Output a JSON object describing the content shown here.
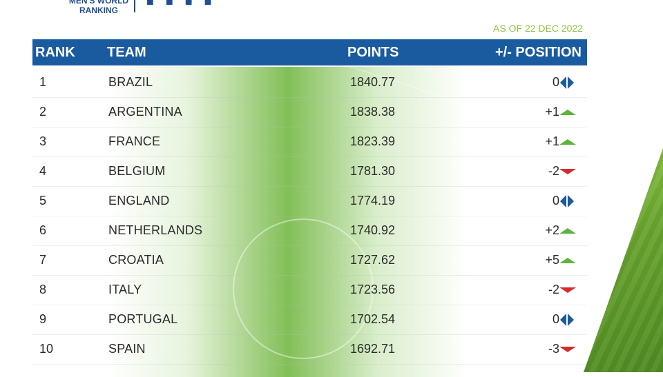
{
  "logo": {
    "line1": "MEN'S WORLD",
    "line2": "RANKING",
    "marks": "■ ■ ■ ■"
  },
  "as_of": "AS OF 22 DEC 2022",
  "header": {
    "rank": "RANK",
    "team": "TEAM",
    "points": "POINTS",
    "change": "+/- POSITION"
  },
  "colors": {
    "header_bg": "#1a5ba0",
    "up": "#5fb33a",
    "down": "#d62b2b",
    "same": "#1a5ba0",
    "accent_green": "#8cc63f"
  },
  "rows": [
    {
      "rank": "1",
      "team": "BRAZIL",
      "points": "1840.77",
      "change": "0",
      "trend": "same-icon"
    },
    {
      "rank": "2",
      "team": "ARGENTINA",
      "points": "1838.38",
      "change": "+1",
      "trend": "up-icon"
    },
    {
      "rank": "3",
      "team": "FRANCE",
      "points": "1823.39",
      "change": "+1",
      "trend": "up-icon"
    },
    {
      "rank": "4",
      "team": "BELGIUM",
      "points": "1781.30",
      "change": "-2",
      "trend": "down-icon"
    },
    {
      "rank": "5",
      "team": "ENGLAND",
      "points": "1774.19",
      "change": "0",
      "trend": "same-icon"
    },
    {
      "rank": "6",
      "team": "NETHERLANDS",
      "points": "1740.92",
      "change": "+2",
      "trend": "up-icon"
    },
    {
      "rank": "7",
      "team": "CROATIA",
      "points": "1727.62",
      "change": "+5",
      "trend": "up-icon"
    },
    {
      "rank": "8",
      "team": "ITALY",
      "points": "1723.56",
      "change": "-2",
      "trend": "down-icon"
    },
    {
      "rank": "9",
      "team": "PORTUGAL",
      "points": "1702.54",
      "change": "0",
      "trend": "same-icon"
    },
    {
      "rank": "10",
      "team": "SPAIN",
      "points": "1692.71",
      "change": "-3",
      "trend": "down-icon"
    }
  ]
}
